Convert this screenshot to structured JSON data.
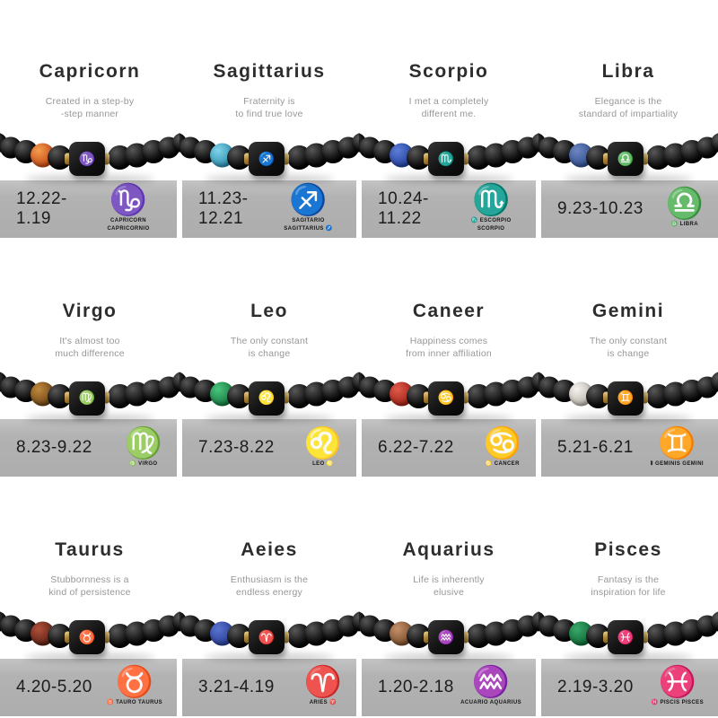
{
  "colors": {
    "page_background": "#ffffff",
    "bar_gray_top": "#c3c3c3",
    "bar_gray_bottom": "#adadad",
    "title_text": "#2d2d2d",
    "subtitle_text": "#979797",
    "date_text": "#1c1c1c",
    "black_bead": "#111111",
    "gold_spacer": "#b08a3e",
    "charm_black": "#121212"
  },
  "cells": [
    {
      "title": "Capricorn",
      "subtitle1": "Created in a step-by",
      "subtitle2": "-step manner",
      "date": "12.22-1.19",
      "glyph": "♑",
      "caption": "CAPRICORN CAPRICORNIO",
      "accent_hi": "#f59d4e",
      "accent_lo": "#c34a17",
      "accent_name": "orange-agate-bead"
    },
    {
      "title": "Sagittarius",
      "subtitle1": "Fraternity is",
      "subtitle2": "to find true love",
      "date": "11.23-12.21",
      "glyph": "♐",
      "caption": "SAGITARIO SAGITTARIUS ♐",
      "accent_hi": "#7fd4e8",
      "accent_lo": "#2e8fb0",
      "accent_name": "turquoise-bead"
    },
    {
      "title": "Scorpio",
      "subtitle1": "I met a completely",
      "subtitle2": "different me.",
      "date": "10.24-11.22",
      "glyph": "♏",
      "caption": "♏ ESCORPIO SCORPIO",
      "accent_hi": "#5d7ed8",
      "accent_lo": "#24409e",
      "accent_name": "lapis-blue-bead"
    },
    {
      "title": "Libra",
      "subtitle1": "Elegance is the",
      "subtitle2": "standard of impartiality",
      "date": "9.23-10.23",
      "glyph": "♎",
      "caption": "♎ LIBRA",
      "accent_hi": "#6e86c0",
      "accent_lo": "#31508e",
      "accent_name": "blue-lava-bead"
    },
    {
      "title": "Virgo",
      "subtitle1": "It's almost too",
      "subtitle2": "much difference",
      "date": "8.23-9.22",
      "glyph": "♍",
      "caption": "♍ VIRGO",
      "accent_hi": "#c08a3e",
      "accent_lo": "#6e4515",
      "accent_name": "tiger-eye-bead"
    },
    {
      "title": "Leo",
      "subtitle1": "The only constant",
      "subtitle2": "is change",
      "date": "7.23-8.22",
      "glyph": "♌",
      "caption": "LEO ♌",
      "accent_hi": "#4cc47e",
      "accent_lo": "#157a40",
      "accent_name": "green-bead"
    },
    {
      "title": "Caneer",
      "subtitle1": "Happiness comes",
      "subtitle2": "from inner affiliation",
      "date": "6.22-7.22",
      "glyph": "♋",
      "caption": "♋ CANCER",
      "accent_hi": "#e05a4a",
      "accent_lo": "#a02418",
      "accent_name": "red-bead"
    },
    {
      "title": "Gemini",
      "subtitle1": "The only constant",
      "subtitle2": "is change",
      "date": "5.21-6.21",
      "glyph": "♊",
      "caption": "Ⅱ GEMINIS GEMINI",
      "accent_hi": "#f5f3ef",
      "accent_lo": "#b9b4ac",
      "accent_name": "white-howlite-bead"
    },
    {
      "title": "Taurus",
      "subtitle1": "Stubbornness is a",
      "subtitle2": "kind of persistence",
      "date": "4.20-5.20",
      "glyph": "♉",
      "caption": "♉ TAURO TAURUS",
      "accent_hi": "#b0503a",
      "accent_lo": "#5e2214",
      "accent_name": "red-tiger-eye-bead"
    },
    {
      "title": "Aeies",
      "subtitle1": "Enthusiasm is the",
      "subtitle2": "endless energy",
      "date": "3.21-4.19",
      "glyph": "♈",
      "caption": "ARIES ♈",
      "accent_hi": "#5a74d0",
      "accent_lo": "#2a3f96",
      "accent_name": "blue-lapis-bead"
    },
    {
      "title": "Aquarius",
      "subtitle1": "Life is inherently",
      "subtitle2": "elusive",
      "date": "1.20-2.18",
      "glyph": "♒",
      "caption": "ACUARIO AQUARIUS",
      "accent_hi": "#c49068",
      "accent_lo": "#7a4e2e",
      "accent_name": "brown-speckled-bead"
    },
    {
      "title": "Pisces",
      "subtitle1": "Fantasy is the",
      "subtitle2": "inspiration for life",
      "date": "2.19-3.20",
      "glyph": "♓",
      "caption": "♓ PISCIS PISCES",
      "accent_hi": "#3aa86a",
      "accent_lo": "#0e6a38",
      "accent_name": "malachite-green-bead"
    }
  ]
}
